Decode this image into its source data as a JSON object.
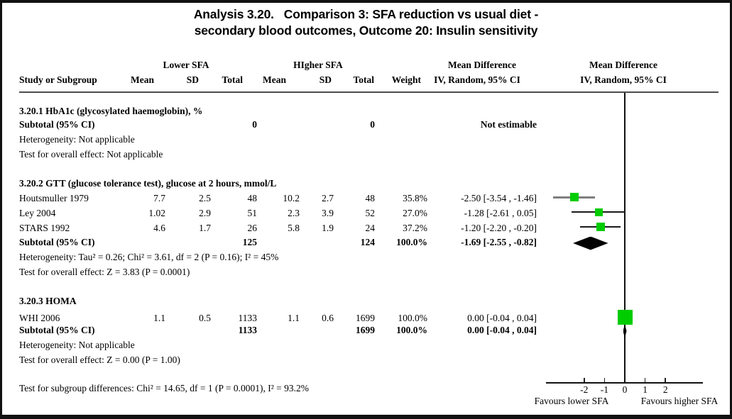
{
  "colors": {
    "square": "#00cc00",
    "diamond": "#000000",
    "ci_line": "#1a1a1a",
    "ci_line_alt": "#7f7f7f",
    "rule": "#4d4d4d"
  },
  "title": {
    "line1": "Analysis 3.20.   Comparison 3: SFA reduction vs usual diet -",
    "line2": "secondary blood outcomes, Outcome 20: Insulin sensitivity"
  },
  "header": {
    "group_lower": "Lower SFA",
    "group_higher": "HIgher SFA",
    "md_table": "Mean Difference",
    "md_plot": "Mean Difference",
    "study": "Study or Subgroup",
    "mean1": "Mean",
    "sd1": "SD",
    "total1": "Total",
    "mean2": "Mean",
    "sd2": "SD",
    "total2": "Total",
    "weight": "Weight",
    "ci_table": "IV, Random, 95% CI",
    "ci_plot": "IV, Random, 95% CI"
  },
  "sections": [
    {
      "heading": "3.20.1 HbA1c (glycosylated haemoglobin), %",
      "subtotal": {
        "label": "Subtotal (95% CI)",
        "total1": "0",
        "total2": "0",
        "weight": "",
        "ci": "Not estimable"
      },
      "heterogeneity": "Heterogeneity: Not applicable",
      "overall": "Test for overall effect: Not applicable"
    },
    {
      "heading": "3.20.2 GTT (glucose tolerance test), glucose at 2 hours, mmol/L",
      "studies": [
        {
          "name": "Houtsmuller 1979",
          "mean1": "7.7",
          "sd1": "2.5",
          "total1": "48",
          "mean2": "10.2",
          "sd2": "2.7",
          "total2": "48",
          "weight": "35.8%",
          "ci": "-2.50 [-3.54 , -1.46]"
        },
        {
          "name": "Ley 2004",
          "mean1": "1.02",
          "sd1": "2.9",
          "total1": "51",
          "mean2": "2.3",
          "sd2": "3.9",
          "total2": "52",
          "weight": "27.0%",
          "ci": "-1.28 [-2.61 , 0.05]"
        },
        {
          "name": "STARS 1992",
          "mean1": "4.6",
          "sd1": "1.7",
          "total1": "26",
          "mean2": "5.8",
          "sd2": "1.9",
          "total2": "24",
          "weight": "37.2%",
          "ci": "-1.20 [-2.20 , -0.20]"
        }
      ],
      "subtotal": {
        "label": "Subtotal (95% CI)",
        "total1": "125",
        "total2": "124",
        "weight": "100.0%",
        "ci": "-1.69 [-2.55 , -0.82]"
      },
      "heterogeneity": "Heterogeneity: Tau² = 0.26; Chi² = 3.61, df = 2 (P = 0.16); I² = 45%",
      "overall": "Test for overall effect: Z = 3.83 (P = 0.0001)"
    },
    {
      "heading": "3.20.3 HOMA",
      "studies": [
        {
          "name": "WHI 2006",
          "mean1": "1.1",
          "sd1": "0.5",
          "total1": "1133",
          "mean2": "1.1",
          "sd2": "0.6",
          "total2": "1699",
          "weight": "100.0%",
          "ci": "0.00 [-0.04 , 0.04]"
        }
      ],
      "subtotal": {
        "label": "Subtotal (95% CI)",
        "total1": "1133",
        "total2": "1699",
        "weight": "100.0%",
        "ci": "0.00 [-0.04 , 0.04]"
      },
      "heterogeneity": "Heterogeneity: Not applicable",
      "overall": "Test for overall effect: Z = 0.00 (P = 1.00)"
    }
  ],
  "footer": {
    "subgroup_test": "Test for subgroup differences: Chi² = 14.65, df = 1 (P = 0.0001), I² = 93.2%",
    "favours_left": "Favours lower SFA",
    "favours_right": "Favours higher SFA"
  },
  "chart_data": {
    "type": "forest",
    "title": "Analysis 3.20. Comparison 3: SFA reduction vs usual diet - secondary blood outcomes, Outcome 20: Insulin sensitivity",
    "effect_measure": "Mean Difference (IV, Random, 95% CI)",
    "xlim": [
      -3.85,
      3.85
    ],
    "x_ticks": [
      -2,
      -1,
      0,
      1,
      2
    ],
    "zero_line": 0,
    "favours": {
      "left": "Favours lower SFA",
      "right": "Favours higher SFA"
    },
    "subgroups": [
      {
        "name": "3.20.1 HbA1c (glycosylated haemoglobin), %",
        "studies": [],
        "subtotal": null,
        "note": "Not estimable",
        "n1": 0,
        "n2": 0
      },
      {
        "name": "3.20.2 GTT (glucose tolerance test), glucose at 2 hours, mmol/L",
        "studies": [
          {
            "study": "Houtsmuller 1979",
            "mean1": 7.7,
            "sd1": 2.5,
            "n1": 48,
            "mean2": 10.2,
            "sd2": 2.7,
            "n2": 48,
            "weight_pct": 35.8,
            "md": -2.5,
            "ci": [
              -3.54,
              -1.46
            ]
          },
          {
            "study": "Ley 2004",
            "mean1": 1.02,
            "sd1": 2.9,
            "n1": 51,
            "mean2": 2.3,
            "sd2": 3.9,
            "n2": 52,
            "weight_pct": 27.0,
            "md": -1.28,
            "ci": [
              -2.61,
              0.05
            ]
          },
          {
            "study": "STARS 1992",
            "mean1": 4.6,
            "sd1": 1.7,
            "n1": 26,
            "mean2": 5.8,
            "sd2": 1.9,
            "n2": 24,
            "weight_pct": 37.2,
            "md": -1.2,
            "ci": [
              -2.2,
              -0.2
            ]
          }
        ],
        "subtotal": {
          "md": -1.69,
          "ci": [
            -2.55,
            -0.82
          ],
          "weight_pct": 100.0,
          "n1": 125,
          "n2": 124
        },
        "heterogeneity": "Tau² = 0.26; Chi² = 3.61, df = 2 (P = 0.16); I² = 45%",
        "overall_effect": "Z = 3.83 (P = 0.0001)"
      },
      {
        "name": "3.20.3 HOMA",
        "studies": [
          {
            "study": "WHI 2006",
            "mean1": 1.1,
            "sd1": 0.5,
            "n1": 1133,
            "mean2": 1.1,
            "sd2": 0.6,
            "n2": 1699,
            "weight_pct": 100.0,
            "md": 0.0,
            "ci": [
              -0.04,
              0.04
            ]
          }
        ],
        "subtotal": {
          "md": 0.0,
          "ci": [
            -0.04,
            0.04
          ],
          "weight_pct": 100.0,
          "n1": 1133,
          "n2": 1699
        },
        "heterogeneity": "Not applicable",
        "overall_effect": "Z = 0.00 (P = 1.00)"
      }
    ]
  }
}
